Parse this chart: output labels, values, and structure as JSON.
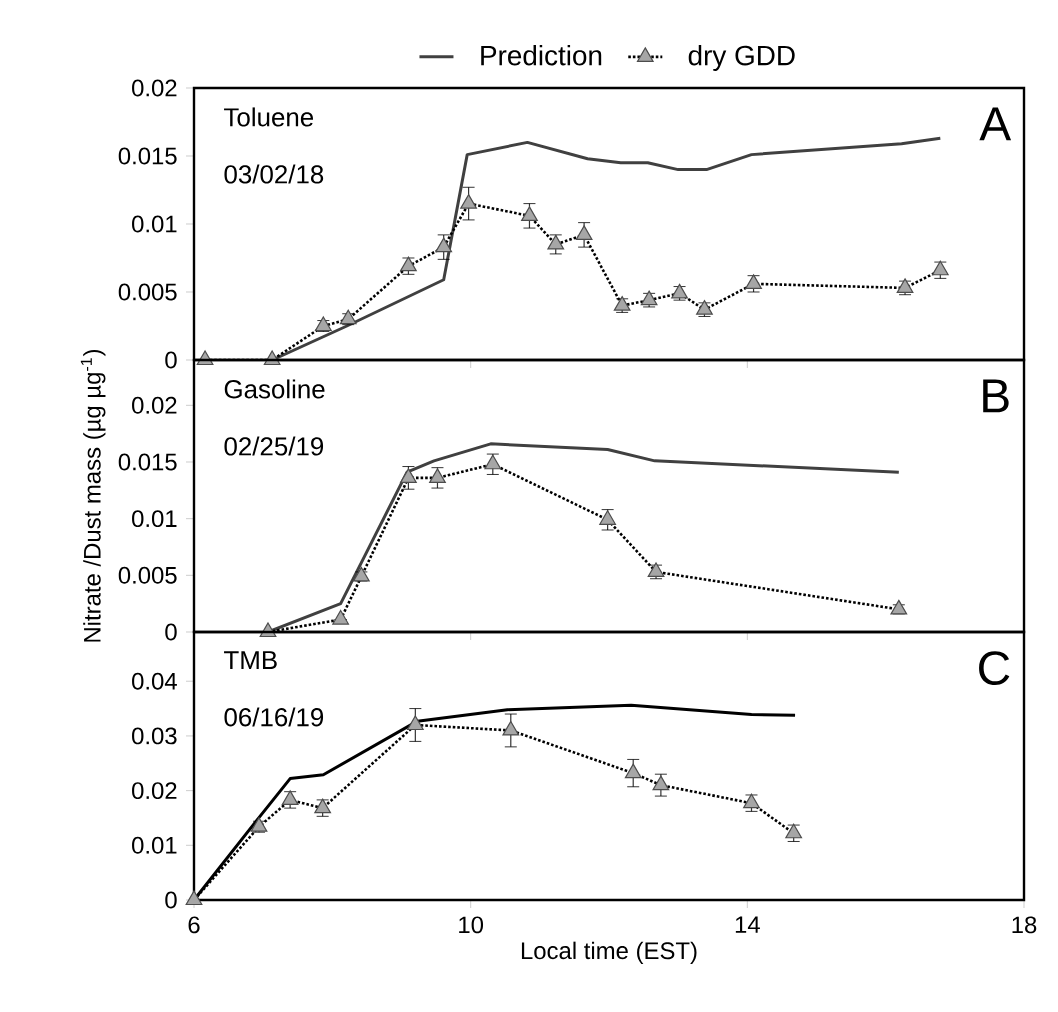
{
  "chart_data": [
    {
      "type": "line",
      "legend": "top",
      "tick_labels": "y",
      "xlim": [
        6,
        18
      ],
      "xticks": [
        6,
        10,
        14,
        18
      ],
      "ylim": [
        0,
        0.02
      ],
      "yticks": [
        0,
        0.005,
        0.01,
        0.015,
        0.02
      ],
      "annotations": [
        "Toluene",
        "03/02/18",
        "A"
      ],
      "series": [
        {
          "name": "Prediction",
          "color": "#404040",
          "marker": "none",
          "line_style": "solid",
          "x": [
            7.13,
            8.21,
            9.61,
            9.95,
            10.82,
            11.69,
            12.17,
            12.56,
            13.0,
            13.41,
            14.06,
            16.23,
            16.79
          ],
          "values": [
            0,
            0.0025,
            0.0059,
            0.0151,
            0.016,
            0.0148,
            0.0145,
            0.0145,
            0.014,
            0.014,
            0.0151,
            0.0159,
            0.0163
          ]
        },
        {
          "name": "dry GDD",
          "color": "#a6a6a6",
          "marker": "triangle",
          "line_style": "dotted",
          "x": [
            6.16,
            7.13,
            7.87,
            8.23,
            9.1,
            9.61,
            9.97,
            10.85,
            11.23,
            11.64,
            12.19,
            12.58,
            13.02,
            13.38,
            14.09,
            16.28,
            16.79
          ],
          "values": [
            0,
            0,
            0.0025,
            0.003,
            0.0069,
            0.0083,
            0.0115,
            0.0106,
            0.0085,
            0.0092,
            0.004,
            0.0044,
            0.0049,
            0.0037,
            0.0056,
            0.0053,
            0.0066
          ],
          "errors": [
            null,
            null,
            0.0004,
            0.0004,
            0.0006,
            0.0009,
            0.0012,
            0.0009,
            0.0007,
            0.0009,
            0.0005,
            0.0005,
            0.0005,
            0.0005,
            0.0006,
            0.0005,
            0.0006
          ]
        }
      ]
    },
    {
      "type": "line",
      "tick_labels": "y",
      "xlim": [
        6,
        18
      ],
      "xticks": [
        6,
        10,
        14,
        18
      ],
      "ylim": [
        0,
        0.024
      ],
      "yticks": [
        0,
        0.005,
        0.01,
        0.015,
        0.02
      ],
      "ylabel": "Nitrate /Dust mass (µg µg$^{-1}$)",
      "annotations": [
        "Gasoline",
        "02/25/19",
        "B"
      ],
      "series": [
        {
          "color": "#404040",
          "marker": "none",
          "line_style": "solid",
          "x": [
            7.07,
            8.12,
            9.08,
            9.47,
            10.29,
            11.98,
            12.66,
            16.19
          ],
          "values": [
            0,
            0.0025,
            0.0141,
            0.0151,
            0.0166,
            0.0161,
            0.0151,
            0.0141
          ]
        },
        {
          "color": "#a6a6a6",
          "marker": "triangle",
          "line_style": "dotted",
          "x": [
            7.07,
            8.12,
            8.42,
            9.1,
            9.52,
            10.32,
            11.98,
            12.68,
            16.19
          ],
          "values": [
            0,
            0.0011,
            0.0049,
            0.0136,
            0.0136,
            0.0148,
            0.0099,
            0.0053,
            0.002
          ],
          "errors": [
            null,
            null,
            0.0004,
            0.001,
            0.0009,
            0.0009,
            0.0009,
            0.0006,
            0.0004
          ]
        }
      ]
    },
    {
      "type": "line",
      "xlim": [
        6,
        18
      ],
      "xticks": [
        6,
        10,
        14,
        18
      ],
      "ylim": [
        0,
        0.049
      ],
      "yticks": [
        0,
        0.01,
        0.02,
        0.03,
        0.04
      ],
      "xlabel": "Local time (EST)",
      "annotations": [
        "TMB",
        "06/16/19",
        "C"
      ],
      "series": [
        {
          "color": "#000000",
          "marker": "none",
          "line_style": "solid",
          "x": [
            6,
            6.91,
            7.39,
            7.87,
            9.23,
            10.53,
            12.32,
            14.06,
            14.69
          ],
          "values": [
            0,
            0.0146,
            0.0222,
            0.0229,
            0.0327,
            0.0348,
            0.0356,
            0.0339,
            0.0338
          ]
        },
        {
          "color": "#a6a6a6",
          "marker": "triangle",
          "line_style": "dotted",
          "x": [
            6,
            6.94,
            7.39,
            7.86,
            9.2,
            10.58,
            12.35,
            12.75,
            14.06,
            14.67
          ],
          "values": [
            0,
            0.0134,
            0.0183,
            0.0168,
            0.032,
            0.031,
            0.0232,
            0.021,
            0.0177,
            0.0122
          ],
          "errors": [
            null,
            0.001,
            0.0015,
            0.0015,
            0.003,
            0.003,
            0.0025,
            0.002,
            0.0015,
            0.0015
          ]
        }
      ]
    }
  ]
}
